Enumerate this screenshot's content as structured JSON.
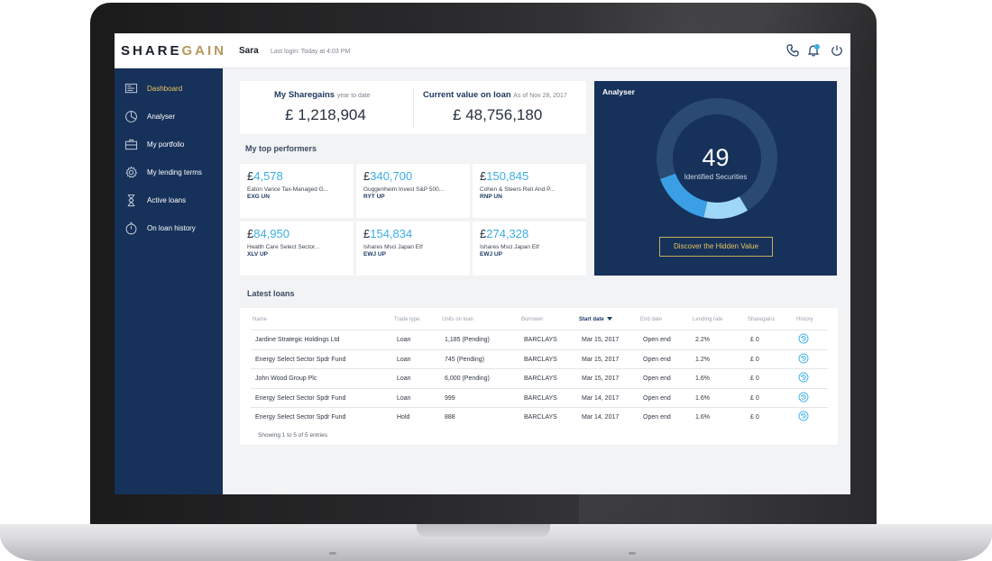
{
  "header": {
    "logo_share": "SHARE",
    "logo_gain": "GAIN",
    "user_name": "Sara",
    "last_login": "Last login: Today at 4:03 PM",
    "icons": [
      "phone-icon",
      "notification-bell-icon",
      "power-icon"
    ]
  },
  "sidebar": {
    "items": [
      {
        "label": "Dashboard",
        "icon": "dashboard-icon",
        "active": true
      },
      {
        "label": "Analyser",
        "icon": "pie-chart-icon",
        "active": false
      },
      {
        "label": "My portfolio",
        "icon": "briefcase-icon",
        "active": false
      },
      {
        "label": "My lending terms",
        "icon": "gear-icon",
        "active": false
      },
      {
        "label": "Active loans",
        "icon": "hourglass-icon",
        "active": false
      },
      {
        "label": "On loan history",
        "icon": "stopwatch-icon",
        "active": false
      }
    ]
  },
  "stats": {
    "sharegains": {
      "label": "My Sharegains",
      "sub": "year to date",
      "currency": "£",
      "value": "1,218,904"
    },
    "on_loan": {
      "label": "Current value on loan",
      "sub": "As of Nov 28, 2017",
      "currency": "£",
      "value": "48,756,180"
    }
  },
  "top_performers": {
    "title": "My top performers",
    "items": [
      {
        "currency": "£",
        "value": "4,578",
        "name": "Eaton Vance Tax-Managed G...",
        "ticker": "EXG UN"
      },
      {
        "currency": "£",
        "value": "340,700",
        "name": "Guggenheim Invest S&P 500...",
        "ticker": "RYT UP"
      },
      {
        "currency": "£",
        "value": "150,845",
        "name": "Cohen & Steers Reit And P...",
        "ticker": "RNP UN"
      },
      {
        "currency": "£",
        "value": "84,950",
        "name": "Health Care Select Sector...",
        "ticker": "XLV UP"
      },
      {
        "currency": "£",
        "value": "154,834",
        "name": "Ishares Msci Japan Etf",
        "ticker": "EWJ UP"
      },
      {
        "currency": "£",
        "value": "274,328",
        "name": "Ishares Msci Japan Etf",
        "ticker": "EWJ UP"
      }
    ]
  },
  "analyser": {
    "title": "Analyser",
    "count": "49",
    "count_label": "Identified Securities",
    "button_label": "Discover the Hidden Value",
    "segments": [
      {
        "fraction": 0.72,
        "color": "#2b4a72"
      },
      {
        "fraction": 0.12,
        "color": "#9fd8f7"
      },
      {
        "fraction": 0.16,
        "color": "#3a9fe4"
      }
    ]
  },
  "loans": {
    "title": "Latest loans",
    "columns": [
      "Name",
      "Trade type",
      "Units on loan",
      "Borrower",
      "Start date",
      "End date",
      "Lending rate",
      "Sharegains",
      "History"
    ],
    "sorted_column": "Start date",
    "rows": [
      {
        "name": "Jardine Strategic Holdings Ltd",
        "trade_type": "Loan",
        "units": "1,185 (Pending)",
        "borrower": "BARCLAYS",
        "start": "Mar 15, 2017",
        "end": "Open end",
        "rate": "2.2%",
        "sharegains": "£ 0"
      },
      {
        "name": "Energy Select Sector Spdr Fund",
        "trade_type": "Loan",
        "units": "745 (Pending)",
        "borrower": "BARCLAYS",
        "start": "Mar 15, 2017",
        "end": "Open end",
        "rate": "1.2%",
        "sharegains": "£ 0"
      },
      {
        "name": "John Wood Group Plc",
        "trade_type": "Loan",
        "units": "6,000 (Pending)",
        "borrower": "BARCLAYS",
        "start": "Mar 15, 2017",
        "end": "Open end",
        "rate": "1.6%",
        "sharegains": "£ 0"
      },
      {
        "name": "Energy Select Sector Spdr Fund",
        "trade_type": "Loan",
        "units": "999",
        "borrower": "BARCLAYS",
        "start": "Mar 14, 2017",
        "end": "Open end",
        "rate": "1.6%",
        "sharegains": "£ 0"
      },
      {
        "name": "Energy Select Sector Spdr Fund",
        "trade_type": "Hold",
        "units": "888",
        "borrower": "BARCLAYS",
        "start": "Mar 14, 2017",
        "end": "Open end",
        "rate": "1.6%",
        "sharegains": "£ 0"
      }
    ],
    "entries_text": "Showing 1 to 5 of 5 entries"
  }
}
